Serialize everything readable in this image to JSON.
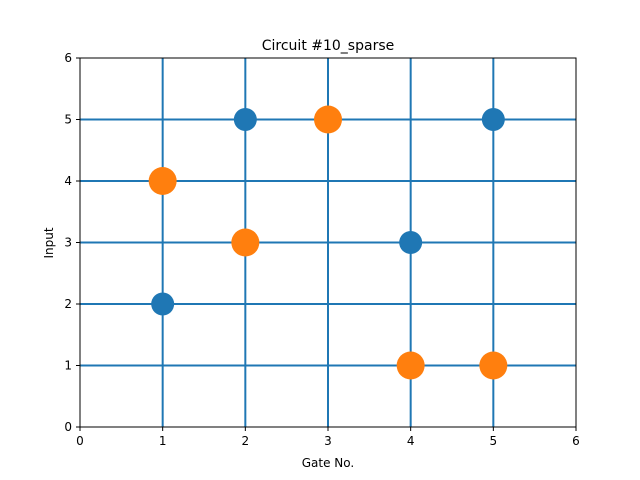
{
  "chart_data": {
    "type": "scatter",
    "title": "Circuit #10_sparse",
    "xlabel": "Gate No.",
    "ylabel": "Input",
    "xlim": [
      0,
      6
    ],
    "ylim": [
      0,
      6
    ],
    "xticks": [
      "0",
      "1",
      "2",
      "3",
      "4",
      "5",
      "6"
    ],
    "yticks": [
      "0",
      "1",
      "2",
      "3",
      "4",
      "5",
      "6"
    ],
    "grid_lines": {
      "x": [
        1,
        2,
        3,
        4,
        5
      ],
      "y": [
        1,
        2,
        3,
        4,
        5
      ],
      "color": "#1f77b4"
    },
    "series": [
      {
        "color": "#1f77b4",
        "marker": "small",
        "points": [
          [
            1,
            2
          ],
          [
            2,
            5
          ],
          [
            4,
            3
          ],
          [
            5,
            5
          ]
        ]
      },
      {
        "color": "#ff7f0e",
        "marker": "large",
        "points": [
          [
            1,
            4
          ],
          [
            2,
            3
          ],
          [
            3,
            5
          ],
          [
            4,
            1
          ],
          [
            5,
            1
          ]
        ]
      }
    ]
  }
}
